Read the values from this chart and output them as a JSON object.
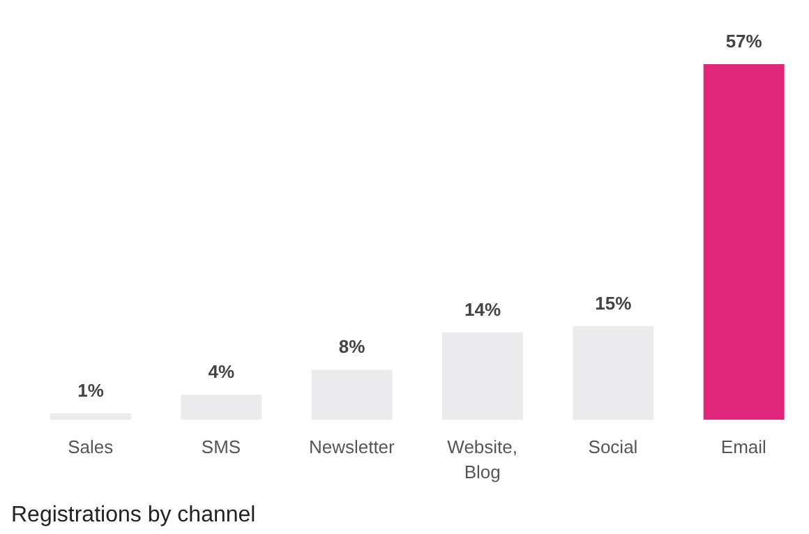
{
  "chart_data": {
    "type": "bar",
    "title": "Registrations by channel",
    "categories": [
      "Sales",
      "SMS",
      "Newsletter",
      "Website, Blog",
      "Social",
      "Email"
    ],
    "values": [
      1,
      4,
      8,
      14,
      15,
      57
    ],
    "value_labels": [
      "1%",
      "4%",
      "8%",
      "14%",
      "15%",
      "57%"
    ],
    "colors": [
      "#ebebed",
      "#ebebed",
      "#ebebed",
      "#ebebed",
      "#ebebed",
      "#e0267a"
    ],
    "grid": false,
    "legend": false
  }
}
